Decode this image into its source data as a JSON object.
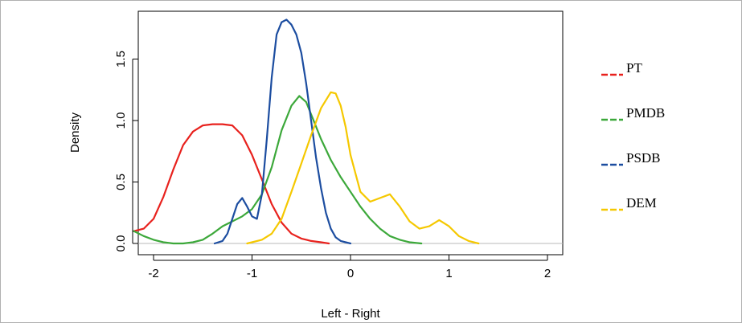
{
  "chart_data": {
    "type": "line",
    "title": "",
    "xlabel": "Left - Right",
    "ylabel": "Density",
    "xlim": [
      -2.2,
      2.2
    ],
    "ylim": [
      0,
      1.85
    ],
    "x_ticks": [
      "-2",
      "-1",
      "0",
      "1",
      "2"
    ],
    "y_ticks": [
      "0.0",
      "0.5",
      "1.0",
      "1.5"
    ],
    "grid": false,
    "legend_position": "right",
    "series": [
      {
        "name": "PT",
        "color": "#e8211d",
        "x": [
          -2.2,
          -2.1,
          -2.0,
          -1.9,
          -1.8,
          -1.7,
          -1.6,
          -1.5,
          -1.4,
          -1.3,
          -1.2,
          -1.1,
          -1.0,
          -0.9,
          -0.8,
          -0.7,
          -0.6,
          -0.5,
          -0.4,
          -0.3,
          -0.22
        ],
        "y": [
          0.1,
          0.12,
          0.2,
          0.38,
          0.6,
          0.8,
          0.91,
          0.96,
          0.97,
          0.97,
          0.96,
          0.88,
          0.72,
          0.52,
          0.32,
          0.17,
          0.08,
          0.04,
          0.02,
          0.01,
          0.0
        ]
      },
      {
        "name": "PMDB",
        "color": "#3ca83a",
        "x": [
          -2.2,
          -2.1,
          -2.0,
          -1.9,
          -1.8,
          -1.7,
          -1.6,
          -1.5,
          -1.4,
          -1.3,
          -1.2,
          -1.1,
          -1.0,
          -0.9,
          -0.8,
          -0.7,
          -0.6,
          -0.52,
          -0.45,
          -0.4,
          -0.3,
          -0.2,
          -0.1,
          0.0,
          0.1,
          0.2,
          0.3,
          0.4,
          0.5,
          0.6,
          0.72
        ],
        "y": [
          0.1,
          0.06,
          0.03,
          0.01,
          0.0,
          0.0,
          0.01,
          0.03,
          0.08,
          0.14,
          0.18,
          0.22,
          0.28,
          0.4,
          0.62,
          0.92,
          1.12,
          1.2,
          1.15,
          1.05,
          0.85,
          0.68,
          0.54,
          0.42,
          0.3,
          0.2,
          0.12,
          0.06,
          0.03,
          0.01,
          0.0
        ]
      },
      {
        "name": "PSDB",
        "color": "#1c4da0",
        "x": [
          -1.38,
          -1.3,
          -1.25,
          -1.2,
          -1.15,
          -1.1,
          -1.05,
          -1.0,
          -0.95,
          -0.9,
          -0.85,
          -0.8,
          -0.75,
          -0.7,
          -0.65,
          -0.6,
          -0.55,
          -0.5,
          -0.45,
          -0.4,
          -0.35,
          -0.3,
          -0.25,
          -0.2,
          -0.15,
          -0.1,
          -0.05,
          0.0
        ],
        "y": [
          0.0,
          0.02,
          0.08,
          0.2,
          0.32,
          0.37,
          0.3,
          0.22,
          0.2,
          0.4,
          0.85,
          1.35,
          1.7,
          1.8,
          1.82,
          1.78,
          1.7,
          1.55,
          1.3,
          1.0,
          0.7,
          0.45,
          0.25,
          0.12,
          0.05,
          0.02,
          0.01,
          0.0
        ]
      },
      {
        "name": "DEM",
        "color": "#f5c800",
        "x": [
          -1.05,
          -1.0,
          -0.9,
          -0.8,
          -0.7,
          -0.6,
          -0.5,
          -0.4,
          -0.3,
          -0.2,
          -0.15,
          -0.1,
          -0.05,
          0.0,
          0.1,
          0.2,
          0.3,
          0.4,
          0.5,
          0.6,
          0.7,
          0.8,
          0.9,
          1.0,
          1.1,
          1.2,
          1.3
        ],
        "y": [
          0.0,
          0.01,
          0.03,
          0.08,
          0.2,
          0.42,
          0.65,
          0.88,
          1.1,
          1.23,
          1.22,
          1.12,
          0.95,
          0.72,
          0.42,
          0.34,
          0.37,
          0.4,
          0.3,
          0.18,
          0.12,
          0.14,
          0.19,
          0.14,
          0.06,
          0.02,
          0.0
        ]
      }
    ]
  }
}
